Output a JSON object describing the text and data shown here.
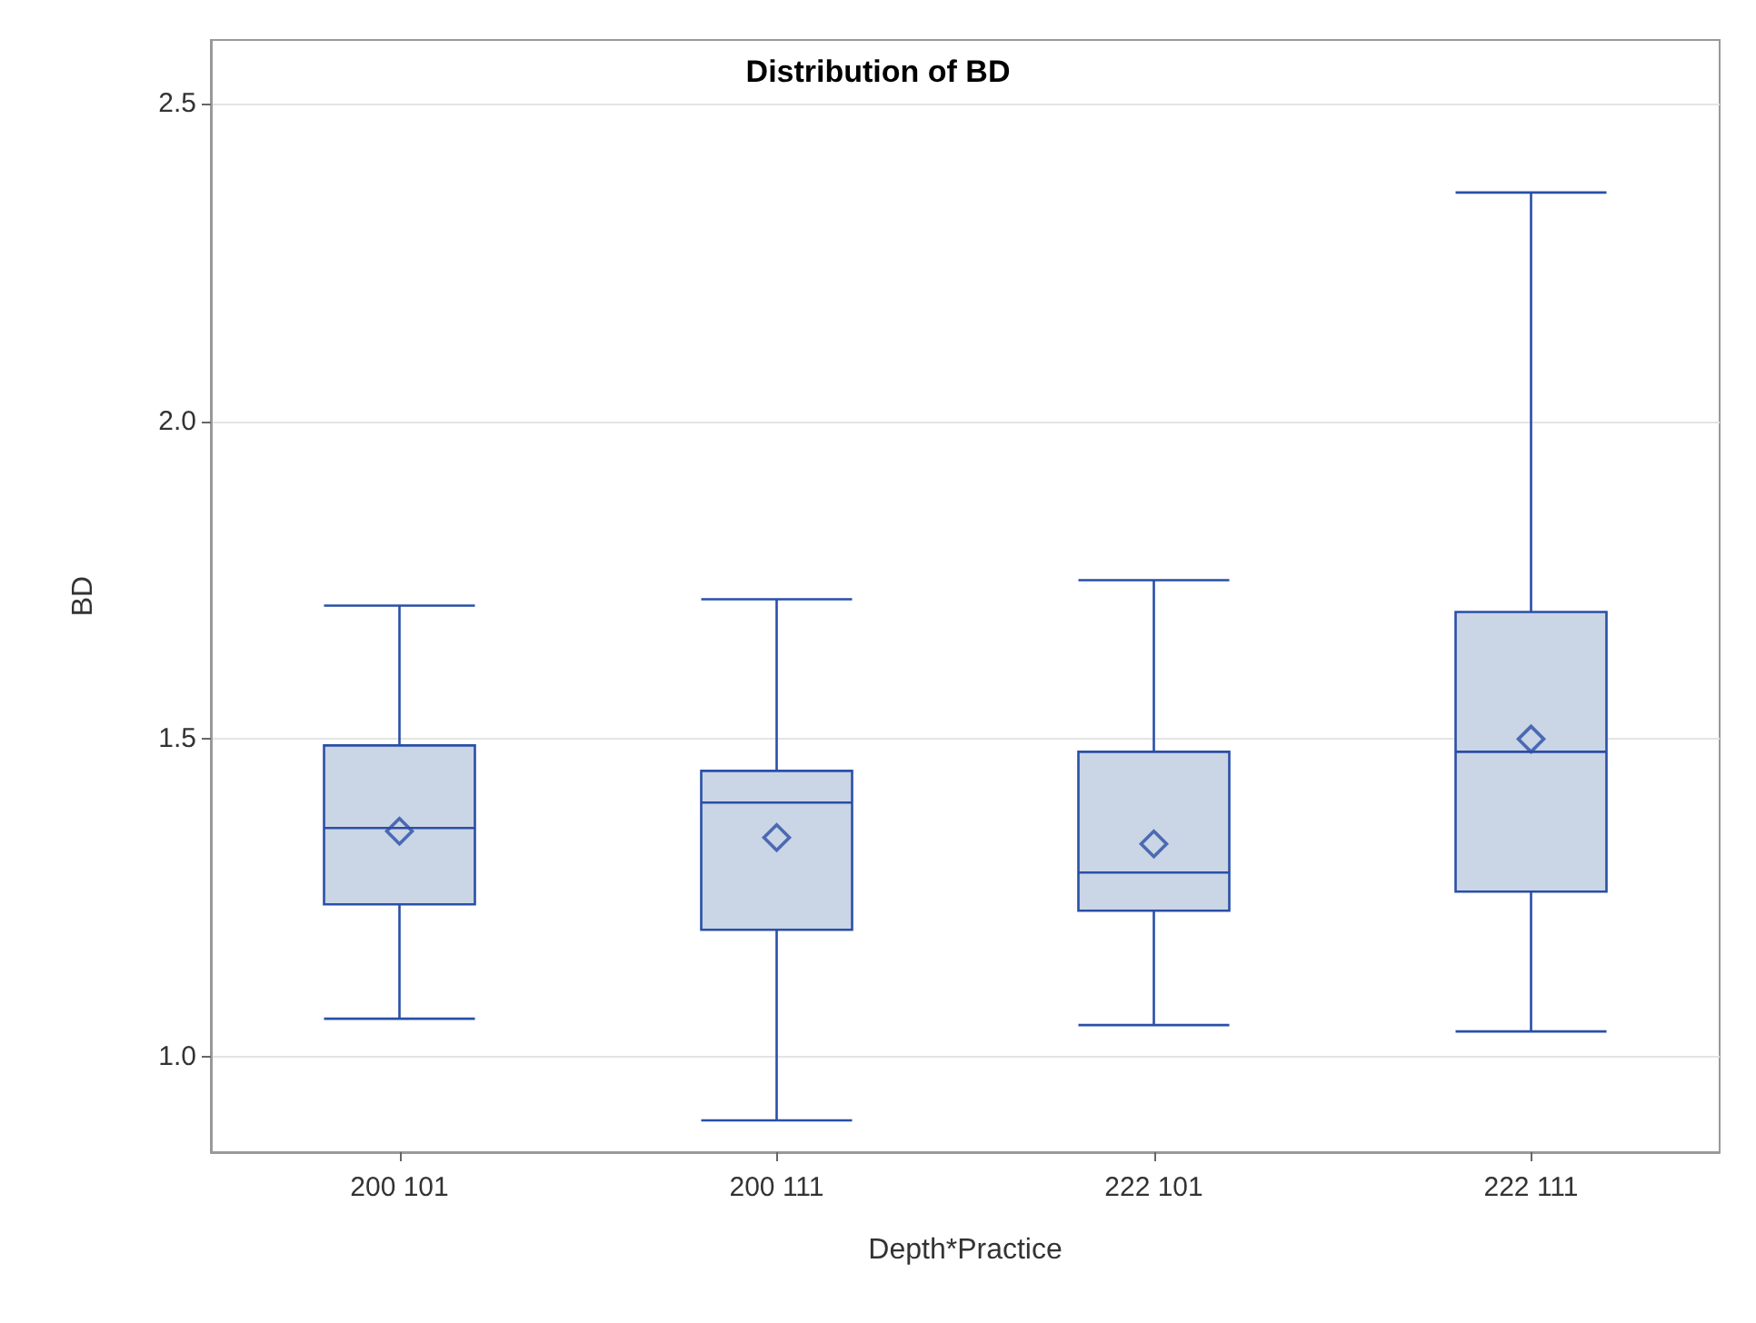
{
  "chart_data": {
    "type": "box",
    "title": "Distribution of BD",
    "xlabel": "Depth*Practice",
    "ylabel": "BD",
    "categories": [
      "200 101",
      "200 111",
      "222 101",
      "222 111"
    ],
    "color": "#cad5e5",
    "boxes": [
      {
        "low": 1.06,
        "q1": 1.24,
        "median": 1.36,
        "q3": 1.49,
        "high": 1.71,
        "mean": 1.355
      },
      {
        "low": 0.9,
        "q1": 1.2,
        "median": 1.4,
        "q3": 1.45,
        "high": 1.72,
        "mean": 1.345
      },
      {
        "low": 1.05,
        "q1": 1.23,
        "median": 1.29,
        "q3": 1.48,
        "high": 1.75,
        "mean": 1.335
      },
      {
        "low": 1.04,
        "q1": 1.26,
        "median": 1.48,
        "q3": 1.7,
        "high": 2.36,
        "mean": 1.5
      }
    ],
    "ylim": [
      0.85,
      2.6
    ],
    "yticks": [
      {
        "value": 1,
        "label": "1.0"
      },
      1.5,
      {
        "value": 2,
        "label": "2.0"
      },
      2.5
    ],
    "grid": "y"
  }
}
